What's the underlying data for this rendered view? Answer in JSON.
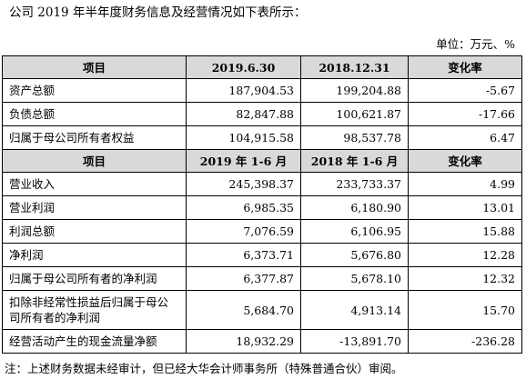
{
  "intro_text": "公司 2019 年半年度财务信息及经营情况如下表所示：",
  "unit_text": "单位：万元、%",
  "section1": {
    "headers": [
      "项目",
      "2019.6.30",
      "2018.12.31",
      "变化率"
    ],
    "rows": [
      [
        "资产总额",
        "187,904.53",
        "199,204.88",
        "-5.67"
      ],
      [
        "负债总额",
        "82,847.88",
        "100,621.87",
        "-17.66"
      ],
      [
        "归属于母公司所有者权益",
        "104,915.58",
        "98,537.78",
        "6.47"
      ]
    ]
  },
  "section2": {
    "headers": [
      "项目",
      "2019 年 1-6 月",
      "2018 年 1-6 月",
      "变化率"
    ],
    "rows": [
      [
        "营业收入",
        "245,398.37",
        "233,733.37",
        "4.99"
      ],
      [
        "营业利润",
        "6,985.35",
        "6,180.90",
        "13.01"
      ],
      [
        "利润总额",
        "7,076.59",
        "6,106.95",
        "15.88"
      ],
      [
        "净利润",
        "6,373.71",
        "5,676.80",
        "12.28"
      ],
      [
        "归属于母公司所有者的净利润",
        "6,377.87",
        "5,678.10",
        "12.32"
      ],
      [
        "扣除非经常性损益后归属于母公司所有者的净利润",
        "5,684.70",
        "4,913.14",
        "15.70"
      ],
      [
        "经营活动产生的现金流量净额",
        "18,932.29",
        "-13,891.70",
        "-236.28"
      ]
    ]
  },
  "note_text": "注：上述财务数据未经审计，但已经大华会计师事务所（特殊普通合伙）审阅。",
  "colors": {
    "header_bg": "#d9d9d9",
    "border": "#000000"
  }
}
